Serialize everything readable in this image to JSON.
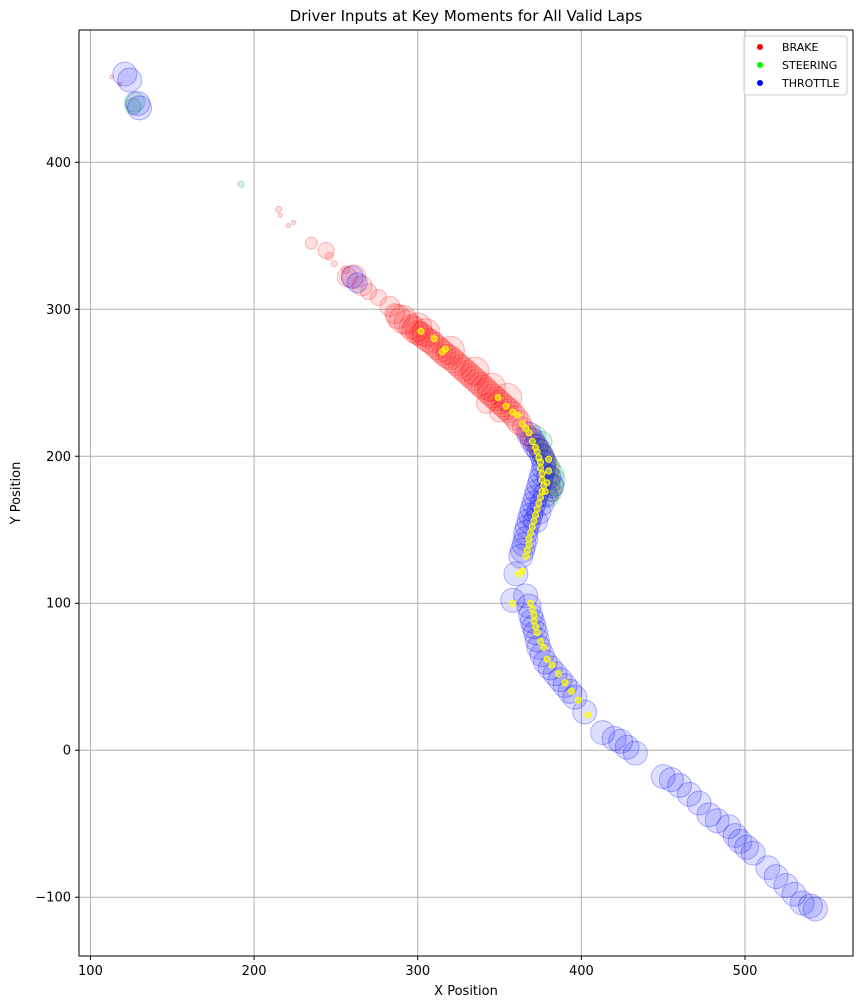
{
  "chart_data": {
    "type": "scatter",
    "title": "Driver Inputs at Key Moments for All Valid Laps",
    "xlabel": "X Position",
    "ylabel": "Y Position",
    "xlim": [
      93,
      566
    ],
    "ylim": [
      -140,
      490
    ],
    "x_ticks": [
      100,
      200,
      300,
      400,
      500
    ],
    "x_tick_labels": [
      "100",
      "200",
      "300",
      "400",
      "500"
    ],
    "y_ticks": [
      -100,
      0,
      100,
      200,
      300,
      400
    ],
    "y_tick_labels": [
      "−100",
      "0",
      "100",
      "200",
      "300",
      "400"
    ],
    "grid": true,
    "legend_position": "top-right",
    "legend": [
      {
        "label": "BRAKE",
        "color": "#ff0000"
      },
      {
        "label": "STEERING",
        "color": "#00ff00"
      },
      {
        "label": "THROTTLE",
        "color": "#0000ff"
      }
    ],
    "series": [
      {
        "name": "BRAKE",
        "color": "#ff0000",
        "point_color": "#ff0000",
        "alpha": 0.12,
        "points": [
          [
            113,
            458,
            2
          ],
          [
            118,
            453,
            2
          ],
          [
            215,
            368,
            3
          ],
          [
            216,
            364,
            2
          ],
          [
            221,
            357,
            2
          ],
          [
            224,
            359,
            2
          ],
          [
            235,
            345,
            6
          ],
          [
            244,
            340,
            8
          ],
          [
            246,
            336,
            4
          ],
          [
            249,
            331,
            3
          ],
          [
            256,
            327,
            4
          ],
          [
            257,
            322,
            10
          ],
          [
            261,
            322,
            12
          ],
          [
            266,
            316,
            10
          ],
          [
            270,
            312,
            8
          ],
          [
            276,
            308,
            8
          ],
          [
            283,
            302,
            10
          ],
          [
            286,
            297,
            10
          ],
          [
            288,
            295,
            12
          ],
          [
            291,
            293,
            14
          ],
          [
            293,
            291,
            12
          ],
          [
            296,
            288,
            12
          ],
          [
            298,
            286,
            13
          ],
          [
            300,
            284,
            12
          ],
          [
            302,
            283,
            12
          ],
          [
            304,
            281,
            12
          ],
          [
            306,
            279,
            12
          ],
          [
            308,
            278,
            12
          ],
          [
            310,
            276,
            12
          ],
          [
            312,
            274,
            12
          ],
          [
            314,
            272,
            12
          ],
          [
            316,
            270,
            12
          ],
          [
            318,
            268,
            12
          ],
          [
            320,
            267,
            12
          ],
          [
            322,
            265,
            12
          ],
          [
            324,
            263,
            12
          ],
          [
            326,
            261,
            12
          ],
          [
            328,
            259,
            12
          ],
          [
            330,
            257,
            12
          ],
          [
            332,
            255,
            12
          ],
          [
            334,
            253,
            12
          ],
          [
            336,
            251,
            12
          ],
          [
            338,
            249,
            12
          ],
          [
            340,
            247,
            12
          ],
          [
            342,
            245,
            12
          ],
          [
            344,
            243,
            12
          ],
          [
            346,
            241,
            12
          ],
          [
            348,
            239,
            12
          ],
          [
            350,
            237,
            12
          ],
          [
            352,
            235,
            12
          ],
          [
            354,
            233,
            12
          ],
          [
            356,
            231,
            12
          ],
          [
            358,
            229,
            12
          ],
          [
            360,
            226,
            12
          ],
          [
            362,
            223,
            12
          ],
          [
            364,
            220,
            10
          ],
          [
            366,
            217,
            10
          ],
          [
            368,
            214,
            10
          ],
          [
            370,
            211,
            10
          ],
          [
            372,
            208,
            10
          ],
          [
            374,
            205,
            10
          ],
          [
            376,
            202,
            10
          ],
          [
            378,
            198,
            10
          ],
          [
            380,
            193,
            10
          ],
          [
            380,
            187,
            10
          ],
          [
            381,
            181,
            10
          ],
          [
            381,
            176,
            10
          ],
          [
            300,
            288,
            14
          ],
          [
            305,
            284,
            14
          ],
          [
            320,
            272,
            14
          ],
          [
            335,
            258,
            14
          ],
          [
            345,
            247,
            14
          ],
          [
            355,
            240,
            14
          ],
          [
            342,
            236,
            10
          ],
          [
            350,
            230,
            10
          ]
        ]
      },
      {
        "name": "STEERING",
        "color": "#00ff00",
        "point_color": "#00a050",
        "alpha": 0.14,
        "points": [
          [
            127,
            441,
            10
          ],
          [
            126,
            438,
            8
          ],
          [
            192,
            385,
            3
          ],
          [
            374,
            205,
            10
          ],
          [
            377,
            200,
            10
          ],
          [
            379,
            196,
            10
          ],
          [
            381,
            192,
            10
          ],
          [
            383,
            188,
            10
          ],
          [
            384,
            184,
            10
          ],
          [
            383,
            180,
            10
          ],
          [
            382,
            176,
            10
          ],
          [
            380,
            172,
            10
          ],
          [
            376,
            210,
            10
          ],
          [
            372,
            214,
            10
          ]
        ]
      },
      {
        "name": "THROTTLE",
        "color": "#0000ff",
        "point_color": "#0000ff",
        "alpha": 0.13,
        "points": [
          [
            121,
            460,
            12
          ],
          [
            124,
            456,
            12
          ],
          [
            130,
            437,
            12
          ],
          [
            129,
            440,
            12
          ],
          [
            260,
            322,
            11
          ],
          [
            263,
            318,
            10
          ],
          [
            368,
            215,
            12
          ],
          [
            370,
            211,
            12
          ],
          [
            372,
            207,
            12
          ],
          [
            374,
            204,
            12
          ],
          [
            376,
            200,
            12
          ],
          [
            377,
            196,
            12
          ],
          [
            377,
            192,
            12
          ],
          [
            376,
            188,
            12
          ],
          [
            375,
            184,
            12
          ],
          [
            374,
            180,
            12
          ],
          [
            373,
            176,
            12
          ],
          [
            372,
            172,
            12
          ],
          [
            371,
            168,
            12
          ],
          [
            370,
            164,
            12
          ],
          [
            369,
            160,
            12
          ],
          [
            368,
            156,
            12
          ],
          [
            367,
            152,
            12
          ],
          [
            366,
            148,
            12
          ],
          [
            366,
            144,
            12
          ],
          [
            365,
            140,
            12
          ],
          [
            364,
            136,
            12
          ],
          [
            363,
            132,
            12
          ],
          [
            360,
            120,
            12
          ],
          [
            358,
            102,
            12
          ],
          [
            366,
            105,
            12
          ],
          [
            368,
            98,
            12
          ],
          [
            369,
            92,
            12
          ],
          [
            370,
            88,
            12
          ],
          [
            371,
            84,
            12
          ],
          [
            372,
            80,
            12
          ],
          [
            373,
            75,
            12
          ],
          [
            374,
            70,
            12
          ],
          [
            376,
            65,
            12
          ],
          [
            378,
            60,
            12
          ],
          [
            381,
            56,
            12
          ],
          [
            384,
            52,
            12
          ],
          [
            387,
            48,
            12
          ],
          [
            390,
            44,
            12
          ],
          [
            393,
            40,
            12
          ],
          [
            396,
            36,
            12
          ],
          [
            402,
            26,
            12
          ],
          [
            413,
            12,
            12
          ],
          [
            420,
            8,
            12
          ],
          [
            424,
            6,
            12
          ],
          [
            428,
            2,
            12
          ],
          [
            433,
            -2,
            12
          ],
          [
            450,
            -18,
            12
          ],
          [
            455,
            -20,
            12
          ],
          [
            460,
            -24,
            12
          ],
          [
            466,
            -30,
            12
          ],
          [
            472,
            -36,
            12
          ],
          [
            478,
            -44,
            12
          ],
          [
            483,
            -48,
            12
          ],
          [
            490,
            -52,
            12
          ],
          [
            494,
            -58,
            12
          ],
          [
            497,
            -62,
            12
          ],
          [
            501,
            -66,
            12
          ],
          [
            505,
            -70,
            12
          ],
          [
            514,
            -80,
            12
          ],
          [
            519,
            -86,
            12
          ],
          [
            525,
            -92,
            12
          ],
          [
            530,
            -98,
            12
          ],
          [
            535,
            -104,
            12
          ],
          [
            540,
            -106,
            12
          ],
          [
            543,
            -108,
            12
          ],
          [
            380,
            186,
            12
          ],
          [
            382,
            180,
            12
          ],
          [
            378,
            174,
            12
          ],
          [
            376,
            168,
            12
          ],
          [
            374,
            162,
            12
          ],
          [
            372,
            156,
            12
          ]
        ]
      },
      {
        "name": "",
        "color": "#ffff00",
        "point_color": "#ffff00",
        "alpha": 0.6,
        "points": [
          [
            302,
            285,
            3
          ],
          [
            310,
            280,
            3
          ],
          [
            315,
            271,
            3
          ],
          [
            317,
            273,
            3
          ],
          [
            349,
            240,
            3
          ],
          [
            354,
            234,
            3
          ],
          [
            358,
            230,
            3
          ],
          [
            361,
            228,
            3
          ],
          [
            364,
            222,
            3
          ],
          [
            366,
            219,
            3
          ],
          [
            368,
            216,
            3
          ],
          [
            370,
            210,
            3
          ],
          [
            372,
            206,
            3
          ],
          [
            373,
            203,
            3
          ],
          [
            374,
            199,
            3
          ],
          [
            375,
            196,
            3
          ],
          [
            375,
            192,
            3
          ],
          [
            376,
            188,
            3
          ],
          [
            376,
            184,
            3
          ],
          [
            377,
            180,
            3
          ],
          [
            376,
            176,
            3
          ],
          [
            375,
            172,
            3
          ],
          [
            374,
            168,
            3
          ],
          [
            373,
            164,
            3
          ],
          [
            372,
            160,
            3
          ],
          [
            371,
            156,
            3
          ],
          [
            370,
            152,
            3
          ],
          [
            369,
            148,
            3
          ],
          [
            368,
            144,
            3
          ],
          [
            368,
            140,
            3
          ],
          [
            367,
            136,
            3
          ],
          [
            366,
            132,
            3
          ],
          [
            364,
            122,
            3
          ],
          [
            362,
            120,
            3
          ],
          [
            369,
            100,
            3
          ],
          [
            370,
            96,
            3
          ],
          [
            371,
            92,
            3
          ],
          [
            371,
            88,
            3
          ],
          [
            372,
            84,
            3
          ],
          [
            373,
            80,
            3
          ],
          [
            375,
            74,
            3
          ],
          [
            377,
            70,
            3
          ],
          [
            379,
            62,
            3
          ],
          [
            382,
            58,
            3
          ],
          [
            386,
            52,
            3
          ],
          [
            390,
            46,
            3
          ],
          [
            394,
            40,
            3
          ],
          [
            398,
            34,
            3
          ],
          [
            404,
            24,
            3
          ],
          [
            358,
            100,
            3
          ],
          [
            380,
            198,
            3
          ],
          [
            380,
            190,
            3
          ],
          [
            379,
            182,
            3
          ],
          [
            378,
            176,
            3
          ]
        ]
      }
    ]
  }
}
